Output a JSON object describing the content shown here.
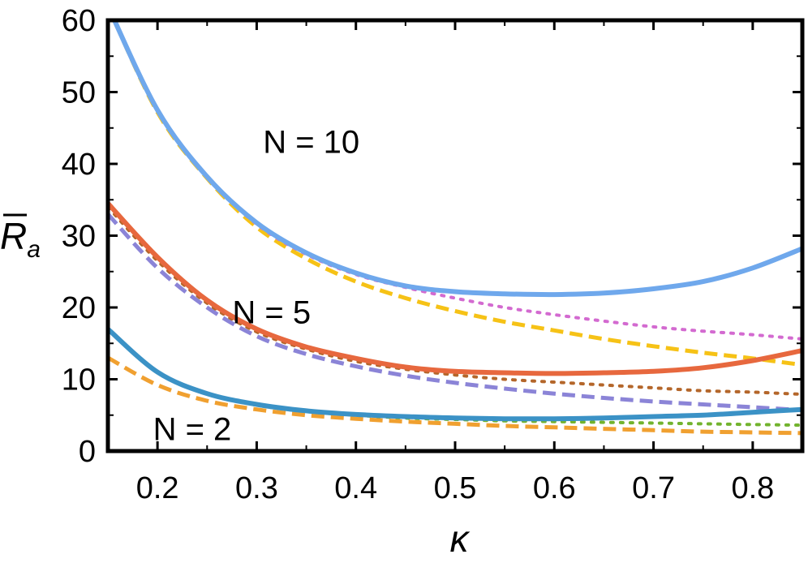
{
  "chart_data": {
    "type": "line",
    "title": "",
    "xlabel": "κ",
    "ylabel_main": "R",
    "ylabel_sub": "a",
    "xlim": [
      0.15,
      0.85
    ],
    "ylim": [
      0,
      60
    ],
    "xticks": [
      0.2,
      0.3,
      0.4,
      0.5,
      0.6,
      0.7,
      0.8
    ],
    "xtick_labels": [
      "0.2",
      "0.3",
      "0.4",
      "0.5",
      "0.6",
      "0.7",
      "0.8"
    ],
    "yticks": [
      0,
      10,
      20,
      30,
      40,
      50,
      60
    ],
    "ytick_labels": [
      "0",
      "10",
      "20",
      "30",
      "40",
      "50",
      "60"
    ],
    "grid": false,
    "x": [
      0.15,
      0.2,
      0.25,
      0.3,
      0.35,
      0.4,
      0.45,
      0.5,
      0.55,
      0.6,
      0.65,
      0.7,
      0.75,
      0.8,
      0.85
    ],
    "series": [
      {
        "group": "N = 10",
        "style": "solid",
        "color": "#6fa8ec",
        "values": [
          62,
          47.5,
          38.2,
          31.8,
          27.6,
          24.8,
          23.0,
          22.2,
          21.9,
          21.8,
          22.0,
          22.6,
          23.6,
          25.5,
          28.2
        ]
      },
      {
        "group": "N = 10",
        "style": "dotted",
        "color": "#d36ad0",
        "values": [
          62,
          47.5,
          38.2,
          31.6,
          27.4,
          24.6,
          22.8,
          21.3,
          20.0,
          19.0,
          18.1,
          17.3,
          16.7,
          16.2,
          15.6
        ]
      },
      {
        "group": "N = 10",
        "style": "dashed",
        "color": "#f6c216",
        "values": [
          62,
          47.2,
          38.0,
          31.2,
          26.8,
          23.6,
          21.3,
          19.5,
          18.0,
          16.8,
          15.6,
          14.6,
          13.7,
          12.9,
          12.0
        ]
      },
      {
        "group": "N = 5",
        "style": "solid",
        "color": "#e7683e",
        "values": [
          34.5,
          27.0,
          21.0,
          17.0,
          14.5,
          12.9,
          11.7,
          11.1,
          10.9,
          10.8,
          10.9,
          11.1,
          11.6,
          12.6,
          14.0
        ]
      },
      {
        "group": "N = 5",
        "style": "dotted",
        "color": "#b4662a",
        "values": [
          34.0,
          26.5,
          20.6,
          16.6,
          14.2,
          12.5,
          11.4,
          10.6,
          10.0,
          9.6,
          9.2,
          8.8,
          8.4,
          8.2,
          7.9
        ]
      },
      {
        "group": "N = 5",
        "style": "dashed",
        "color": "#8b84d7",
        "values": [
          33.0,
          25.5,
          20.0,
          16.0,
          13.5,
          11.8,
          10.5,
          9.5,
          8.7,
          8.0,
          7.4,
          6.9,
          6.5,
          6.1,
          5.7
        ]
      },
      {
        "group": "N = 2",
        "style": "solid",
        "color": "#3b92c6",
        "values": [
          17.0,
          11.0,
          8.0,
          6.5,
          5.6,
          5.1,
          4.8,
          4.6,
          4.5,
          4.5,
          4.6,
          4.8,
          5.0,
          5.4,
          5.8
        ]
      },
      {
        "group": "N = 2",
        "style": "dotted",
        "color": "#72b32d",
        "values": [
          17.0,
          11.0,
          8.0,
          6.4,
          5.5,
          5.0,
          4.6,
          4.4,
          4.2,
          4.1,
          4.0,
          3.9,
          3.8,
          3.7,
          3.6
        ]
      },
      {
        "group": "N = 2",
        "style": "dashed",
        "color": "#f0a030",
        "values": [
          13.0,
          9.2,
          7.0,
          5.8,
          5.0,
          4.5,
          4.1,
          3.8,
          3.5,
          3.3,
          3.1,
          2.9,
          2.7,
          2.6,
          2.5
        ]
      }
    ],
    "annotations": [
      {
        "text": "N = 10",
        "x": 0.355,
        "y": 41.5
      },
      {
        "text": "N = 5",
        "x": 0.315,
        "y": 17.8
      },
      {
        "text": "N = 2",
        "x": 0.235,
        "y": 1.5
      }
    ]
  }
}
